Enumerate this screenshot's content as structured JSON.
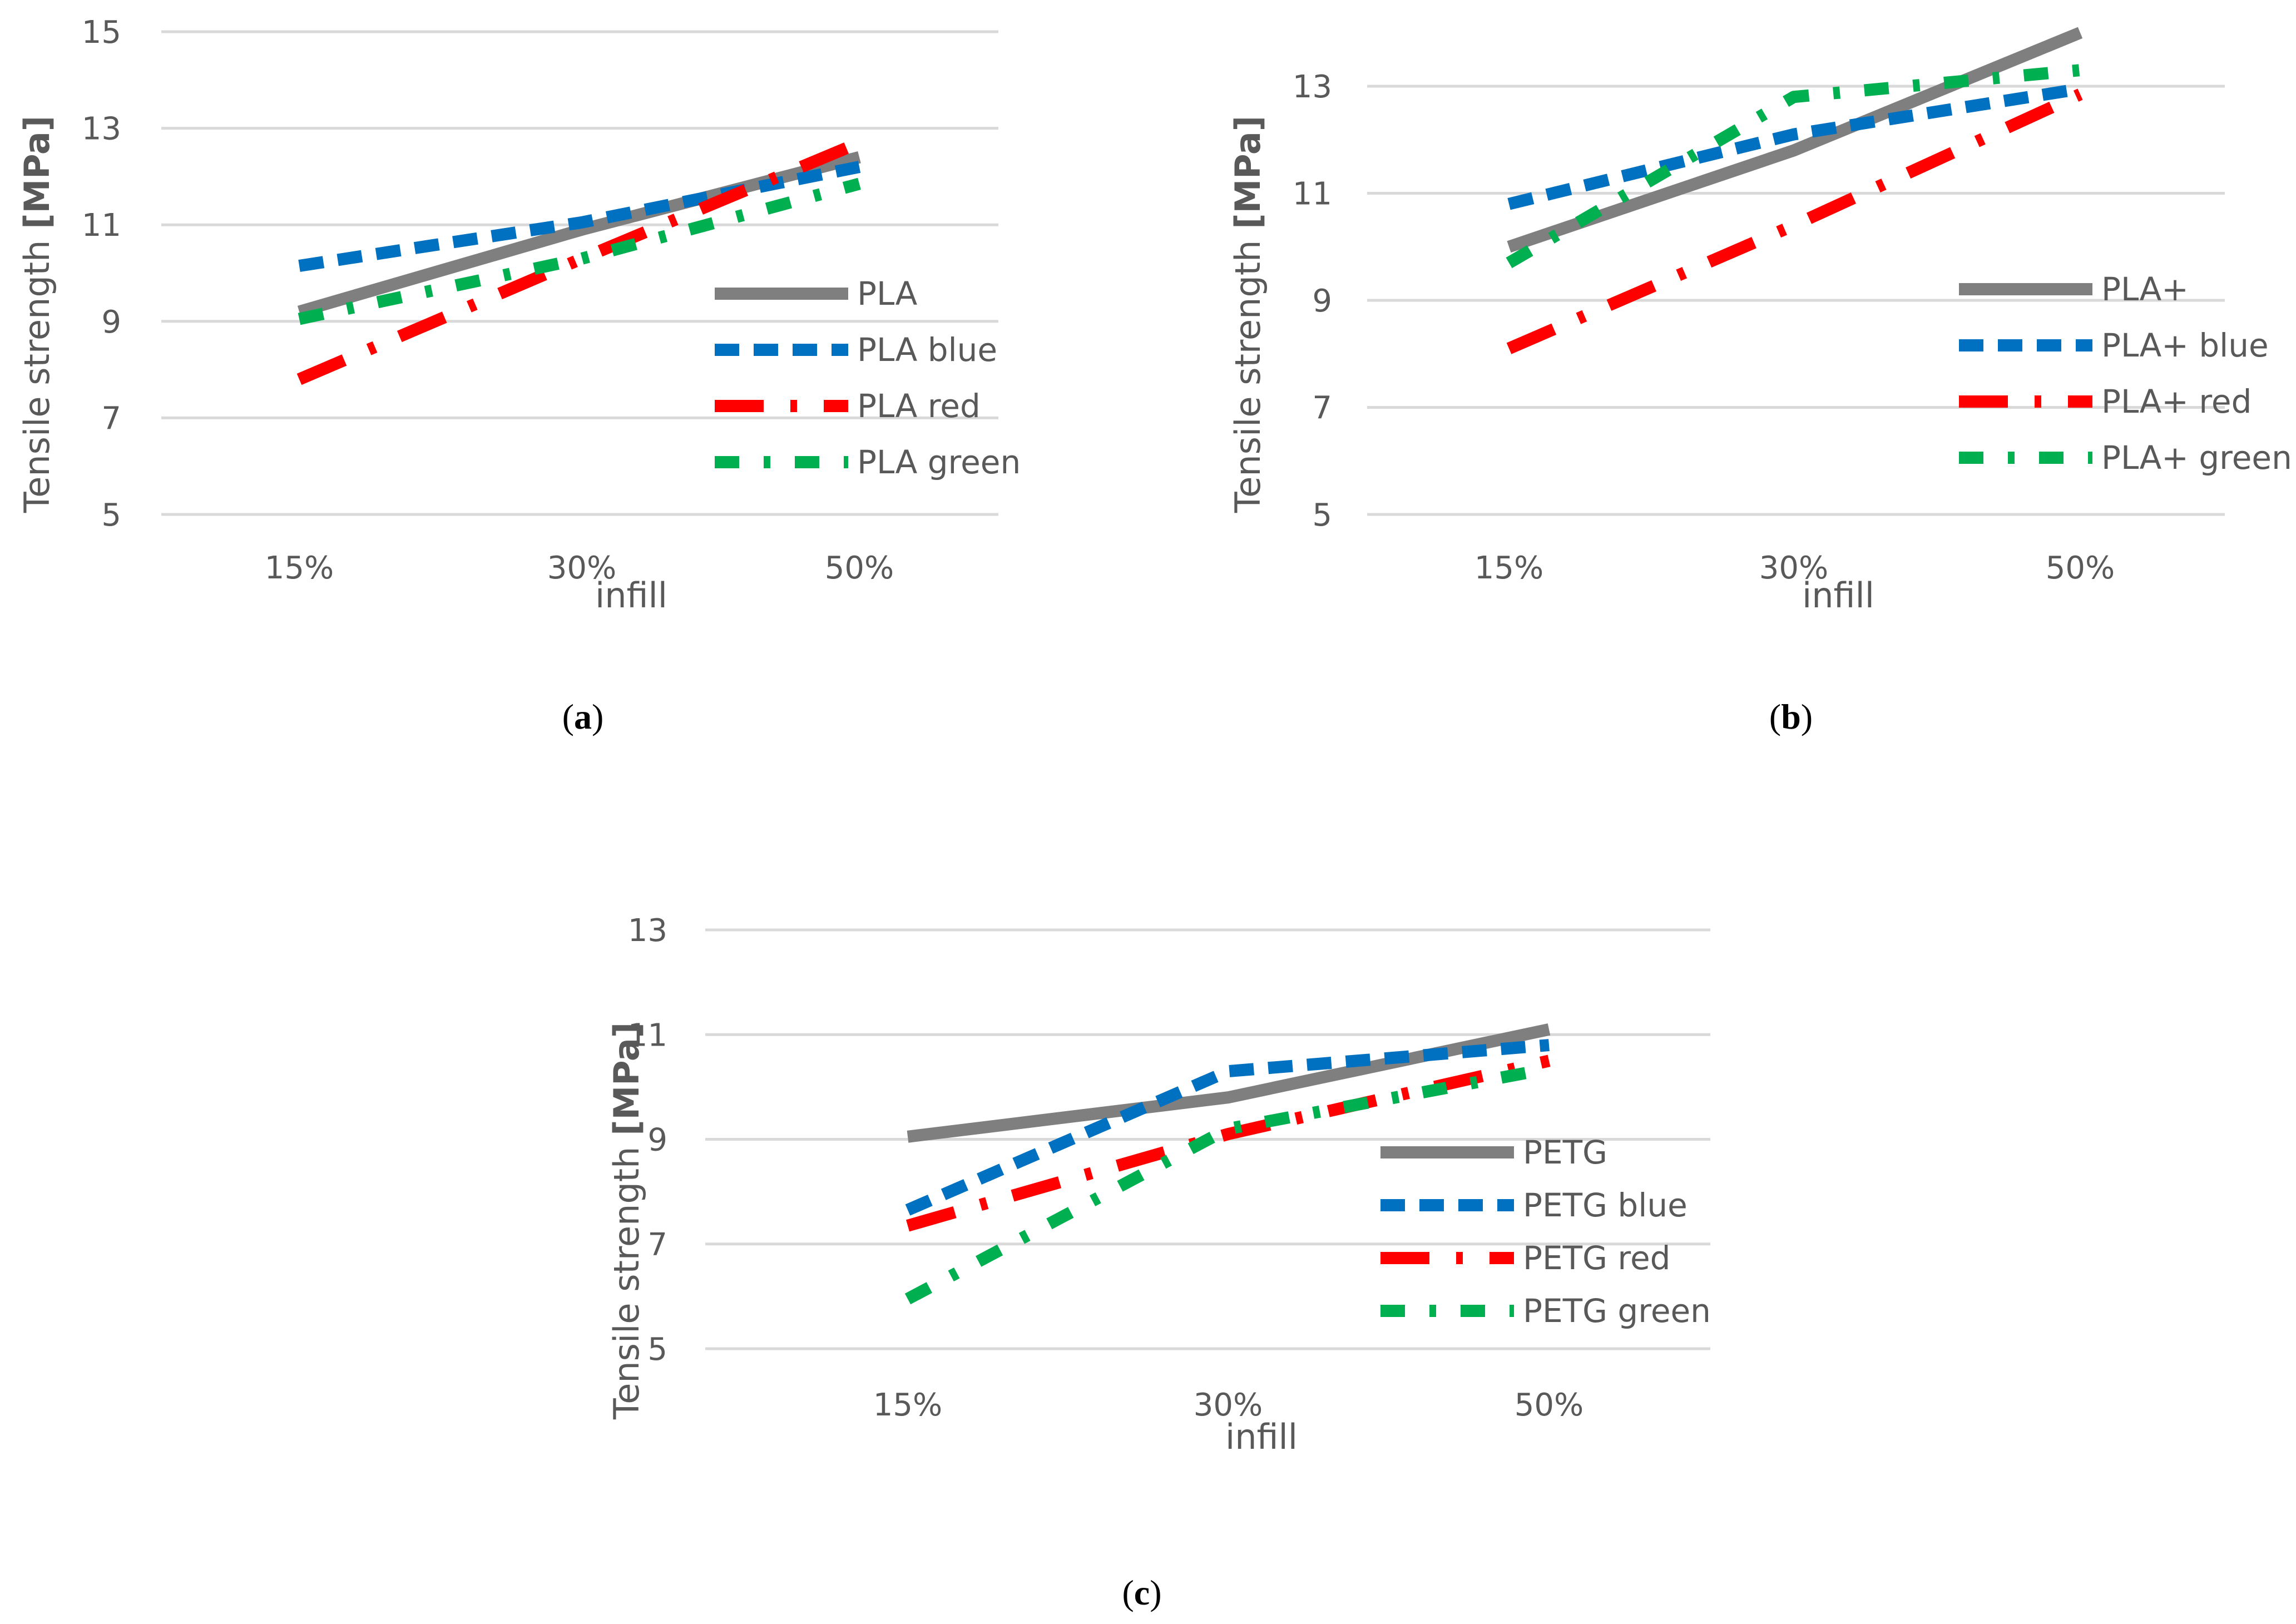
{
  "figure": {
    "captions": [
      "(a)",
      "(b)",
      "(c)"
    ],
    "caption_parts": [
      {
        "open": "(",
        "letter": "a",
        "close": ")"
      },
      {
        "open": "(",
        "letter": "b",
        "close": ")"
      },
      {
        "open": "(",
        "letter": "c",
        "close": ")"
      }
    ]
  },
  "colors": {
    "base": "#7f7f7f",
    "blue": "#0070c0",
    "red": "#ff0000",
    "green": "#00b050",
    "grid": "#d9d9d9",
    "text": "#595959"
  },
  "chart_data": [
    {
      "type": "line",
      "panel": "a",
      "title": "",
      "xlabel": "infill",
      "ylabel": "Tensile strength [MPa]",
      "ylabel_plain": "Tensile strength ",
      "ylabel_bold": "[MPa]",
      "categories": [
        "15%",
        "30%",
        "50%"
      ],
      "ylim": [
        5,
        15
      ],
      "yticks": [
        5,
        7,
        9,
        11,
        13,
        15
      ],
      "legend_position": "bottom-right",
      "series": [
        {
          "name": "PLA",
          "style": "solid",
          "color": "#7f7f7f",
          "values": [
            9.2,
            10.9,
            12.4
          ]
        },
        {
          "name": "PLA blue",
          "style": "dash",
          "color": "#0070c0",
          "values": [
            10.15,
            11.05,
            12.2
          ]
        },
        {
          "name": "PLA red",
          "style": "longdashdot",
          "color": "#ff0000",
          "values": [
            7.8,
            10.3,
            12.7
          ]
        },
        {
          "name": "PLA green",
          "style": "dashdot",
          "color": "#00b050",
          "values": [
            9.05,
            10.3,
            11.85
          ]
        }
      ]
    },
    {
      "type": "line",
      "panel": "b",
      "title": "",
      "xlabel": "infill",
      "ylabel": "Tensile strength [MPa]",
      "ylabel_plain": "Tensile strength ",
      "ylabel_bold": "[MPa]",
      "categories": [
        "15%",
        "30%",
        "50%"
      ],
      "ylim": [
        5,
        14
      ],
      "yticks": [
        5,
        7,
        9,
        11,
        13
      ],
      "legend_position": "bottom-right",
      "series": [
        {
          "name": "PLA+",
          "style": "solid",
          "color": "#7f7f7f",
          "values": [
            10.0,
            11.8,
            14.0
          ]
        },
        {
          "name": "PLA+ blue",
          "style": "dash",
          "color": "#0070c0",
          "values": [
            10.8,
            12.1,
            12.95
          ]
        },
        {
          "name": "PLA+ red",
          "style": "longdashdot",
          "color": "#ff0000",
          "values": [
            8.1,
            10.4,
            12.85
          ]
        },
        {
          "name": "PLA+ green",
          "style": "dashdot",
          "color": "#00b050",
          "values": [
            9.7,
            12.8,
            13.3
          ]
        }
      ]
    },
    {
      "type": "line",
      "panel": "c",
      "title": "",
      "xlabel": "infill",
      "ylabel": "Tensile strength [MPa]",
      "ylabel_plain": "Tensile strength ",
      "ylabel_bold": "[MPa]",
      "categories": [
        "15%",
        "30%",
        "50%"
      ],
      "ylim": [
        5,
        13
      ],
      "yticks": [
        5,
        7,
        9,
        11,
        13
      ],
      "legend_position": "bottom-right",
      "series": [
        {
          "name": "PETG",
          "style": "solid",
          "color": "#7f7f7f",
          "values": [
            9.05,
            9.8,
            11.1
          ]
        },
        {
          "name": "PETG blue",
          "style": "dash",
          "color": "#0070c0",
          "values": [
            7.65,
            10.3,
            10.8
          ]
        },
        {
          "name": "PETG red",
          "style": "longdashdot",
          "color": "#ff0000",
          "values": [
            7.35,
            9.1,
            10.5
          ]
        },
        {
          "name": "PETG green",
          "style": "dashdot",
          "color": "#00b050",
          "values": [
            5.95,
            9.2,
            10.35
          ]
        }
      ]
    }
  ]
}
